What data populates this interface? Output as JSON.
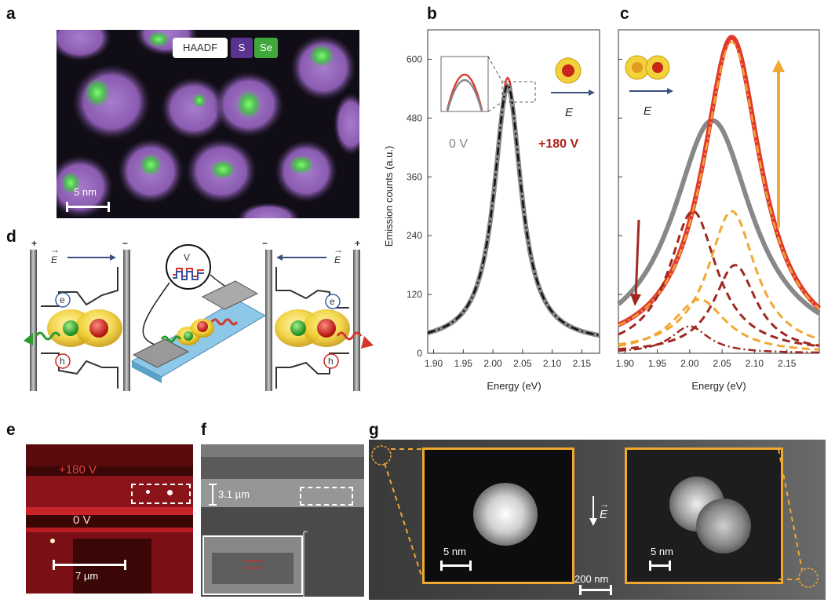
{
  "panel_labels": {
    "a": "a",
    "b": "b",
    "c": "c",
    "d": "d",
    "e": "e",
    "f": "f",
    "g": "g"
  },
  "panel_a": {
    "legend_haadf": "HAADF",
    "legend_s": "S",
    "legend_se": "Se",
    "scalebar": "5 nm",
    "colors": {
      "s": "#8c5ab0",
      "se": "#4fcf4a",
      "bg": "#0e0c14"
    }
  },
  "panel_d": {
    "e_field": "E",
    "plus": "+",
    "minus": "−",
    "electron": "e",
    "hole": "h",
    "voltage": "V"
  },
  "panel_e": {
    "label_180": "+180 V",
    "label_0": "0 V",
    "scalebar": "7 µm"
  },
  "panel_f": {
    "dimension": "3.1 µm"
  },
  "panel_g": {
    "scalebar_left": "5 nm",
    "scalebar_right": "5 nm",
    "scalebar_main": "200 nm",
    "e_field": "E"
  },
  "panel_b": {
    "label_0v": "0 V",
    "label_180v": "+180 V",
    "e_field": "E"
  },
  "panel_c": {
    "e_field": "E"
  },
  "chart_data": [
    {
      "panel": "b",
      "type": "line",
      "xlabel": "Energy (eV)",
      "ylabel": "Emission counts (a.u.)",
      "xlim": [
        1.89,
        2.18
      ],
      "ylim": [
        0,
        660
      ],
      "xticks": [
        1.9,
        1.95,
        2.0,
        2.05,
        2.1,
        2.15
      ],
      "xtick_labels": [
        "1.90",
        "1.95",
        "2.00",
        "2.05",
        "2.10",
        "2.15"
      ],
      "yticks": [
        0,
        120,
        240,
        360,
        480,
        600
      ],
      "ytick_labels": [
        "0",
        "120",
        "240",
        "360",
        "480",
        "600"
      ],
      "series": [
        {
          "color": "#e03a2f",
          "style": "solid",
          "center": 2.025,
          "amplitude": 540,
          "width": 0.028,
          "base": 22
        },
        {
          "color": "#888888",
          "style": "solid-thick",
          "center": 2.025,
          "amplitude": 525,
          "width": 0.028,
          "base": 20
        },
        {
          "color": "#111111",
          "style": "dashdot",
          "center": 2.025,
          "amplitude": 528,
          "width": 0.028,
          "base": 20
        }
      ]
    },
    {
      "panel": "c",
      "type": "line",
      "xlabel": "Energy (eV)",
      "xlim": [
        1.89,
        2.2
      ],
      "ylim": [
        0,
        660
      ],
      "xticks": [
        1.9,
        1.95,
        2.0,
        2.05,
        2.1,
        2.15
      ],
      "xtick_labels": [
        "1.90",
        "1.95",
        "2.00",
        "2.05",
        "2.10",
        "2.15"
      ],
      "yticks": [
        0,
        120,
        240,
        360,
        480,
        600
      ],
      "series": [
        {
          "color": "#888888",
          "style": "solid-thick",
          "center": 2.035,
          "amplitude": 475,
          "width": 0.075,
          "base": 0
        },
        {
          "color": "#e03a2f",
          "style": "solid-thick",
          "center": 2.065,
          "amplitude": 645,
          "width": 0.055,
          "base": 0
        },
        {
          "color": "#f0a830",
          "style": "dashdot",
          "center": 2.065,
          "amplitude": 635,
          "width": 0.055,
          "base": 0
        },
        {
          "color": "#a02822",
          "style": "dashed",
          "center": 2.005,
          "amplitude": 290,
          "width": 0.045,
          "base": 0
        },
        {
          "color": "#f0a830",
          "style": "dashed",
          "center": 2.065,
          "amplitude": 290,
          "width": 0.045,
          "base": 0
        },
        {
          "color": "#a02822",
          "style": "dashdot",
          "center": 2.0,
          "amplitude": 55,
          "width": 0.035,
          "base": 0
        },
        {
          "color": "#f0a830",
          "style": "dashed",
          "center": 2.015,
          "amplitude": 110,
          "width": 0.05,
          "base": 0
        },
        {
          "color": "#a02822",
          "style": "dashed",
          "center": 2.07,
          "amplitude": 180,
          "width": 0.04,
          "base": 0
        }
      ]
    }
  ]
}
